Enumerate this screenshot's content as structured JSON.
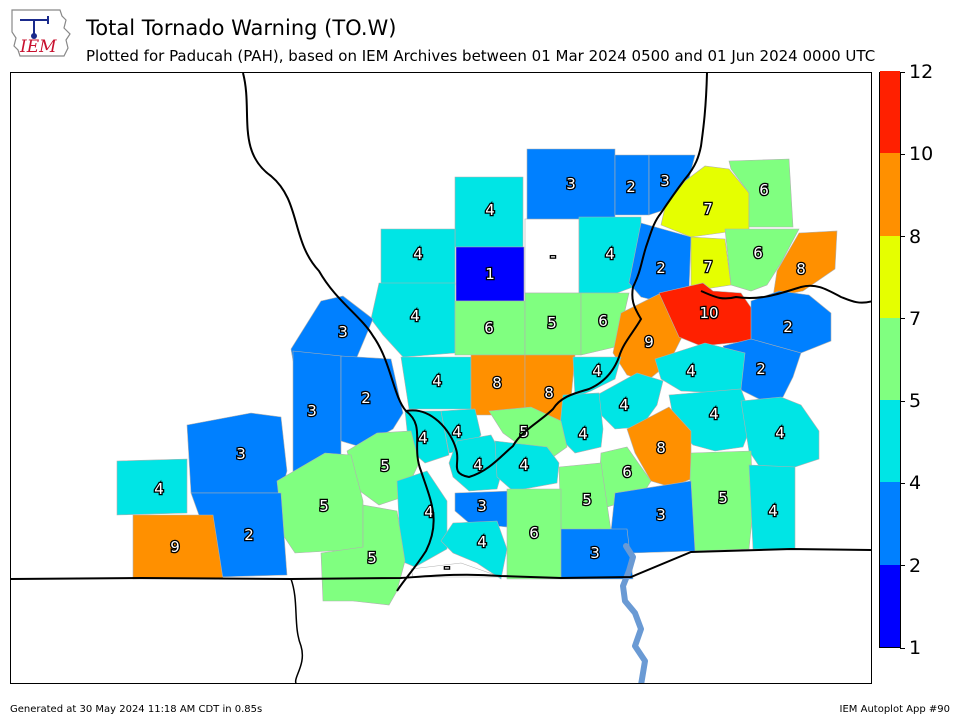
{
  "header": {
    "title": "Total Tornado Warning (TO.W)",
    "subtitle": "Plotted for Paducah (PAH), based on IEM Archives  between 01 Mar 2024 0500 and 01 Jun 2024 0000 UTC",
    "logo_text": "IEM"
  },
  "colorbar": {
    "ticks": [
      "1",
      "2",
      "4",
      "5",
      "7",
      "8",
      "10",
      "12"
    ],
    "colors": [
      "#0000ff",
      "#0080ff",
      "#00e5e5",
      "#80ff80",
      "#e5ff00",
      "#ff9000",
      "#ff2000"
    ]
  },
  "counties": [
    {
      "label": "4",
      "count": 4
    },
    {
      "label": "1",
      "count": 1
    },
    {
      "label": "-",
      "count": 0
    },
    {
      "label": "3",
      "count": 3
    },
    {
      "label": "2",
      "count": 2
    },
    {
      "label": "3",
      "count": 3
    },
    {
      "label": "7",
      "count": 7
    },
    {
      "label": "6",
      "count": 6
    },
    {
      "label": "4",
      "count": 4
    },
    {
      "label": "2",
      "count": 2
    },
    {
      "label": "7",
      "count": 7
    },
    {
      "label": "6",
      "count": 6
    },
    {
      "label": "8",
      "count": 8
    },
    {
      "label": "4",
      "count": 4
    },
    {
      "label": "4",
      "count": 4
    },
    {
      "label": "6",
      "count": 6
    },
    {
      "label": "5",
      "count": 5
    },
    {
      "label": "6",
      "count": 6
    },
    {
      "label": "9",
      "count": 9
    },
    {
      "label": "10",
      "count": 10
    },
    {
      "label": "2",
      "count": 2
    },
    {
      "label": "3",
      "count": 3
    },
    {
      "label": "2",
      "count": 2
    },
    {
      "label": "3",
      "count": 3
    },
    {
      "label": "4",
      "count": 4
    },
    {
      "label": "8",
      "count": 8
    },
    {
      "label": "8",
      "count": 8
    },
    {
      "label": "4",
      "count": 4
    },
    {
      "label": "4",
      "count": 4
    },
    {
      "label": "2",
      "count": 2
    },
    {
      "label": "4",
      "count": 4
    },
    {
      "label": "4",
      "count": 4
    },
    {
      "label": "4",
      "count": 4
    },
    {
      "label": "5",
      "count": 5
    },
    {
      "label": "4",
      "count": 4
    },
    {
      "label": "8",
      "count": 8
    },
    {
      "label": "4",
      "count": 4
    },
    {
      "label": "4",
      "count": 4
    },
    {
      "label": "3",
      "count": 3
    },
    {
      "label": "5",
      "count": 5
    },
    {
      "label": "4",
      "count": 4
    },
    {
      "label": "4",
      "count": 4
    },
    {
      "label": "6",
      "count": 6
    },
    {
      "label": "5",
      "count": 5
    },
    {
      "label": "5",
      "count": 5
    },
    {
      "label": "4",
      "count": 4
    },
    {
      "label": "3",
      "count": 3
    },
    {
      "label": "2",
      "count": 2
    },
    {
      "label": "5",
      "count": 5
    },
    {
      "label": "4",
      "count": 4
    },
    {
      "label": "4",
      "count": 4
    },
    {
      "label": "3",
      "count": 3
    },
    {
      "label": "9",
      "count": 9
    },
    {
      "label": "6",
      "count": 6
    },
    {
      "label": "3",
      "count": 3
    },
    {
      "label": "4",
      "count": 4
    },
    {
      "label": "5",
      "count": 5
    },
    {
      "label": "-",
      "count": 0
    }
  ],
  "footer": {
    "left": "Generated at 30 May 2024 11:18 AM CDT in 0.85s",
    "right": "IEM Autoplot App #90"
  }
}
